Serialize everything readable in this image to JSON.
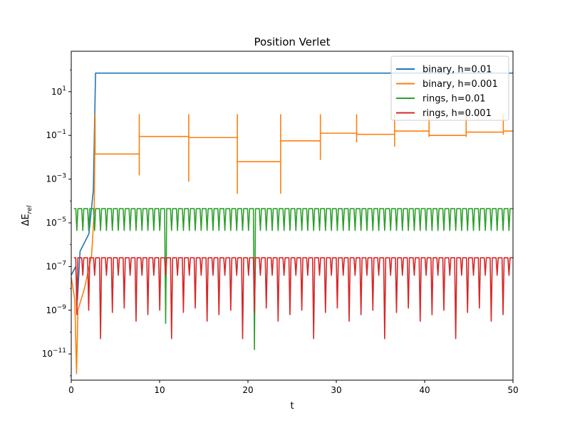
{
  "chart_data": {
    "type": "line",
    "title": "Position Verlet",
    "xlabel": "t",
    "ylabel": "ΔE_rel",
    "ylabel_main": "ΔE",
    "ylabel_sub": "rel",
    "xlim": [
      0,
      50
    ],
    "ylim_log10": [
      -12.2,
      2.85
    ],
    "yscale": "log",
    "grid": false,
    "legend_position": "top-right",
    "x_ticks": [
      "0",
      "10",
      "20",
      "30",
      "40",
      "50"
    ],
    "x_tick_values": [
      0,
      10,
      20,
      30,
      40,
      50
    ],
    "y_ticks": [
      {
        "base": "10",
        "exp": "1",
        "log": 1
      },
      {
        "base": "10",
        "exp": "−1",
        "log": -1
      },
      {
        "base": "10",
        "exp": "−3",
        "log": -3
      },
      {
        "base": "10",
        "exp": "−5",
        "log": -5
      },
      {
        "base": "10",
        "exp": "−7",
        "log": -7
      },
      {
        "base": "10",
        "exp": "−9",
        "log": -9
      },
      {
        "base": "10",
        "exp": "−11",
        "log": -11
      }
    ],
    "series": [
      {
        "name": "binary, h=0.01",
        "color": "#1f77b4",
        "pattern": "ramp-then-saturate",
        "segments": [
          {
            "t": 0.0,
            "log": -7.4
          },
          {
            "t": 0.5,
            "log": -7.0
          },
          {
            "t": 0.7,
            "log": -8.5
          },
          {
            "t": 1.0,
            "log": -6.3
          },
          {
            "t": 2.0,
            "log": -5.5
          },
          {
            "t": 2.5,
            "log": -3.5
          },
          {
            "t": 2.75,
            "log": 1.85
          },
          {
            "t": 50.0,
            "log": 1.85
          }
        ]
      },
      {
        "name": "binary, h=0.001",
        "color": "#ff7f0e",
        "pattern": "step-levels",
        "plateaus": [
          {
            "t0": 2.7,
            "t1": 7.7,
            "log": -1.85
          },
          {
            "t0": 7.7,
            "t1": 13.3,
            "log": -1.05
          },
          {
            "t0": 13.3,
            "t1": 18.8,
            "log": -1.1
          },
          {
            "t0": 18.8,
            "t1": 23.7,
            "log": -2.2
          },
          {
            "t0": 23.7,
            "t1": 28.2,
            "log": -1.25
          },
          {
            "t0": 28.2,
            "t1": 32.3,
            "log": -0.9
          },
          {
            "t0": 32.3,
            "t1": 36.6,
            "log": -0.95
          },
          {
            "t0": 36.6,
            "t1": 40.5,
            "log": -0.8
          },
          {
            "t0": 40.5,
            "t1": 44.7,
            "log": -1.0
          },
          {
            "t0": 44.7,
            "t1": 48.9,
            "log": -0.85
          },
          {
            "t0": 48.9,
            "t1": 50.0,
            "log": -0.8
          }
        ],
        "jumps": [
          {
            "t": 2.7,
            "up": -0.05,
            "down": -1.85
          },
          {
            "t": 7.7,
            "up": -0.05,
            "down": -2.8
          },
          {
            "t": 13.3,
            "up": -0.05,
            "down": -3.1
          },
          {
            "t": 18.8,
            "up": -0.05,
            "down": -3.65
          },
          {
            "t": 23.7,
            "up": -0.05,
            "down": -3.65
          },
          {
            "t": 28.2,
            "up": -0.05,
            "down": -2.1
          },
          {
            "t": 32.3,
            "up": -0.05,
            "down": -1.3
          },
          {
            "t": 36.6,
            "up": -0.05,
            "down": -1.5
          },
          {
            "t": 40.5,
            "up": -0.05,
            "down": -1.05
          },
          {
            "t": 44.7,
            "up": -0.05,
            "down": -1.05
          },
          {
            "t": 48.9,
            "up": -0.05,
            "down": -0.95
          }
        ],
        "early": [
          {
            "t": 0.0,
            "log": -7.5
          },
          {
            "t": 0.4,
            "log": -8.5
          },
          {
            "t": 0.6,
            "log": -11.9
          },
          {
            "t": 0.75,
            "log": -9.0
          },
          {
            "t": 1.5,
            "log": -8.0
          },
          {
            "t": 2.3,
            "log": -6.5
          },
          {
            "t": 2.6,
            "log": -4.5
          }
        ]
      },
      {
        "name": "rings, h=0.01",
        "color": "#2ca02c",
        "pattern": "oscillation",
        "period": 0.67,
        "start": 0.3,
        "top": -4.35,
        "bottom": -5.35,
        "deep_dips": [
          {
            "t": 11.0,
            "log": -9.6
          },
          {
            "t": 21.0,
            "log": -10.8
          }
        ]
      },
      {
        "name": "rings, h=0.001",
        "color": "#d62728",
        "pattern": "oscillation-with-spikes",
        "period": 0.67,
        "start": 0.3,
        "top": -6.6,
        "bottom": -7.4,
        "spike_depths": [
          -9.2,
          -9.0,
          -10.3,
          -9.1,
          -8.9,
          -9.5
        ]
      }
    ]
  }
}
